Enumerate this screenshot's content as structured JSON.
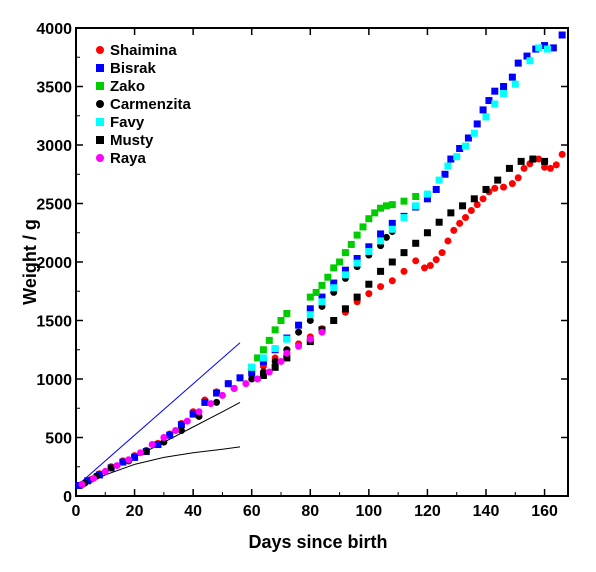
{
  "chart_data": {
    "type": "scatter",
    "xlabel": "Days since birth",
    "ylabel": "Weight / g",
    "xlim": [
      0,
      168
    ],
    "ylim": [
      0,
      4000
    ],
    "x_ticks": [
      "0",
      "20",
      "40",
      "60",
      "80",
      "100",
      "120",
      "140",
      "160"
    ],
    "y_ticks": [
      "0",
      "500",
      "1000",
      "1500",
      "2000",
      "2500",
      "3000",
      "3500",
      "4000"
    ],
    "legend_position": "top-left",
    "grid": false,
    "series": [
      {
        "name": "Shaimina",
        "color": "#ff0000",
        "marker": "circle",
        "points": [
          [
            2,
            95
          ],
          [
            5,
            140
          ],
          [
            8,
            190
          ],
          [
            12,
            250
          ],
          [
            16,
            300
          ],
          [
            20,
            345
          ],
          [
            24,
            390
          ],
          [
            28,
            450
          ],
          [
            32,
            530
          ],
          [
            36,
            620
          ],
          [
            40,
            720
          ],
          [
            44,
            820
          ],
          [
            48,
            890
          ],
          [
            52,
            960
          ],
          [
            56,
            1010
          ],
          [
            60,
            1060
          ],
          [
            64,
            1110
          ],
          [
            68,
            1180
          ],
          [
            72,
            1250
          ],
          [
            76,
            1300
          ],
          [
            80,
            1360
          ],
          [
            84,
            1430
          ],
          [
            88,
            1500
          ],
          [
            92,
            1570
          ],
          [
            96,
            1660
          ],
          [
            100,
            1730
          ],
          [
            104,
            1790
          ],
          [
            108,
            1840
          ],
          [
            112,
            1920
          ],
          [
            116,
            2010
          ],
          [
            119,
            1950
          ],
          [
            121,
            1970
          ],
          [
            123,
            2020
          ],
          [
            125,
            2080
          ],
          [
            127,
            2180
          ],
          [
            129,
            2270
          ],
          [
            131,
            2330
          ],
          [
            133,
            2380
          ],
          [
            135,
            2440
          ],
          [
            137,
            2490
          ],
          [
            139,
            2540
          ],
          [
            141,
            2600
          ],
          [
            143,
            2630
          ],
          [
            146,
            2640
          ],
          [
            149,
            2670
          ],
          [
            151,
            2720
          ],
          [
            153,
            2800
          ],
          [
            155,
            2840
          ],
          [
            158,
            2880
          ],
          [
            160,
            2810
          ],
          [
            162,
            2800
          ],
          [
            164,
            2830
          ],
          [
            166,
            2920
          ]
        ]
      },
      {
        "name": "Bisrak",
        "color": "#0000ff",
        "marker": "square",
        "points": [
          [
            1,
            90
          ],
          [
            4,
            130
          ],
          [
            8,
            180
          ],
          [
            12,
            240
          ],
          [
            16,
            290
          ],
          [
            20,
            330
          ],
          [
            24,
            380
          ],
          [
            28,
            440
          ],
          [
            32,
            520
          ],
          [
            36,
            610
          ],
          [
            40,
            700
          ],
          [
            44,
            800
          ],
          [
            48,
            880
          ],
          [
            52,
            960
          ],
          [
            56,
            1010
          ],
          [
            60,
            1050
          ],
          [
            64,
            1150
          ],
          [
            68,
            1250
          ],
          [
            72,
            1350
          ],
          [
            76,
            1460
          ],
          [
            80,
            1600
          ],
          [
            84,
            1700
          ],
          [
            88,
            1820
          ],
          [
            92,
            1930
          ],
          [
            96,
            2030
          ],
          [
            100,
            2130
          ],
          [
            104,
            2240
          ],
          [
            108,
            2330
          ],
          [
            112,
            2390
          ],
          [
            116,
            2470
          ],
          [
            120,
            2540
          ],
          [
            123,
            2620
          ],
          [
            126,
            2750
          ],
          [
            128,
            2880
          ],
          [
            131,
            2970
          ],
          [
            134,
            3060
          ],
          [
            137,
            3180
          ],
          [
            139,
            3300
          ],
          [
            141,
            3380
          ],
          [
            143,
            3460
          ],
          [
            146,
            3500
          ],
          [
            149,
            3580
          ],
          [
            151,
            3700
          ],
          [
            154,
            3760
          ],
          [
            157,
            3820
          ],
          [
            160,
            3850
          ],
          [
            163,
            3830
          ],
          [
            166,
            3940
          ]
        ]
      },
      {
        "name": "Zako",
        "color": "#00cc00",
        "marker": "square",
        "points": [
          [
            60,
            1100
          ],
          [
            62,
            1180
          ],
          [
            64,
            1250
          ],
          [
            66,
            1330
          ],
          [
            68,
            1420
          ],
          [
            70,
            1500
          ],
          [
            72,
            1560
          ],
          [
            80,
            1700
          ],
          [
            82,
            1740
          ],
          [
            84,
            1800
          ],
          [
            86,
            1870
          ],
          [
            88,
            1950
          ],
          [
            90,
            2000
          ],
          [
            92,
            2080
          ],
          [
            94,
            2150
          ],
          [
            96,
            2230
          ],
          [
            98,
            2300
          ],
          [
            100,
            2370
          ],
          [
            102,
            2420
          ],
          [
            104,
            2460
          ],
          [
            106,
            2480
          ],
          [
            108,
            2490
          ],
          [
            112,
            2520
          ],
          [
            116,
            2560
          ]
        ]
      },
      {
        "name": "Carmenzita",
        "color": "#000000",
        "marker": "circle",
        "points": [
          [
            3,
            110
          ],
          [
            7,
            170
          ],
          [
            12,
            240
          ],
          [
            18,
            300
          ],
          [
            24,
            380
          ],
          [
            30,
            460
          ],
          [
            36,
            560
          ],
          [
            42,
            680
          ],
          [
            48,
            800
          ],
          [
            54,
            920
          ],
          [
            60,
            1000
          ],
          [
            64,
            1060
          ],
          [
            68,
            1150
          ],
          [
            72,
            1250
          ],
          [
            76,
            1400
          ],
          [
            80,
            1500
          ],
          [
            84,
            1620
          ],
          [
            88,
            1740
          ],
          [
            92,
            1860
          ],
          [
            96,
            1960
          ],
          [
            100,
            2060
          ],
          [
            104,
            2140
          ],
          [
            106,
            2210
          ],
          [
            108,
            2260
          ]
        ]
      },
      {
        "name": "Favy",
        "color": "#00ffff",
        "marker": "square",
        "points": [
          [
            60,
            1100
          ],
          [
            64,
            1180
          ],
          [
            68,
            1260
          ],
          [
            72,
            1340
          ],
          [
            80,
            1550
          ],
          [
            84,
            1660
          ],
          [
            88,
            1780
          ],
          [
            92,
            1890
          ],
          [
            96,
            1990
          ],
          [
            100,
            2090
          ],
          [
            104,
            2180
          ],
          [
            108,
            2280
          ],
          [
            112,
            2380
          ],
          [
            116,
            2480
          ],
          [
            120,
            2580
          ],
          [
            124,
            2700
          ],
          [
            127,
            2820
          ],
          [
            130,
            2900
          ],
          [
            133,
            2990
          ],
          [
            136,
            3100
          ],
          [
            140,
            3240
          ],
          [
            143,
            3350
          ],
          [
            146,
            3440
          ],
          [
            150,
            3520
          ],
          [
            155,
            3720
          ],
          [
            158,
            3830
          ],
          [
            161,
            3820
          ]
        ]
      },
      {
        "name": "Musty",
        "color": "#000000",
        "marker": "square",
        "points": [
          [
            64,
            1030
          ],
          [
            68,
            1100
          ],
          [
            72,
            1180
          ],
          [
            80,
            1320
          ],
          [
            84,
            1420
          ],
          [
            88,
            1500
          ],
          [
            92,
            1600
          ],
          [
            96,
            1700
          ],
          [
            100,
            1810
          ],
          [
            104,
            1920
          ],
          [
            108,
            2000
          ],
          [
            112,
            2080
          ],
          [
            116,
            2160
          ],
          [
            120,
            2250
          ],
          [
            124,
            2340
          ],
          [
            128,
            2420
          ],
          [
            132,
            2480
          ],
          [
            136,
            2540
          ],
          [
            140,
            2620
          ],
          [
            144,
            2700
          ],
          [
            148,
            2800
          ],
          [
            152,
            2860
          ],
          [
            156,
            2880
          ],
          [
            160,
            2860
          ]
        ]
      },
      {
        "name": "Raya",
        "color": "#ff00ff",
        "marker": "circle",
        "points": [
          [
            2,
            100
          ],
          [
            6,
            150
          ],
          [
            10,
            210
          ],
          [
            14,
            260
          ],
          [
            18,
            310
          ],
          [
            22,
            370
          ],
          [
            26,
            440
          ],
          [
            30,
            500
          ],
          [
            34,
            560
          ],
          [
            38,
            640
          ],
          [
            42,
            720
          ],
          [
            46,
            790
          ],
          [
            50,
            860
          ],
          [
            54,
            920
          ],
          [
            58,
            960
          ],
          [
            62,
            1000
          ],
          [
            66,
            1060
          ],
          [
            70,
            1150
          ],
          [
            72,
            1220
          ],
          [
            76,
            1280
          ],
          [
            80,
            1340
          ],
          [
            84,
            1400
          ]
        ]
      }
    ],
    "reference_lines": [
      {
        "color": "#0000ff",
        "points": [
          [
            0,
            80
          ],
          [
            56,
            1310
          ]
        ]
      },
      {
        "color": "#000000",
        "points": [
          [
            0,
            70
          ],
          [
            10,
            200
          ],
          [
            20,
            330
          ],
          [
            30,
            460
          ],
          [
            40,
            590
          ],
          [
            50,
            720
          ],
          [
            56,
            800
          ]
        ]
      },
      {
        "color": "#000000",
        "points": [
          [
            0,
            70
          ],
          [
            10,
            180
          ],
          [
            20,
            270
          ],
          [
            30,
            330
          ],
          [
            40,
            370
          ],
          [
            50,
            400
          ],
          [
            56,
            420
          ]
        ]
      }
    ]
  }
}
